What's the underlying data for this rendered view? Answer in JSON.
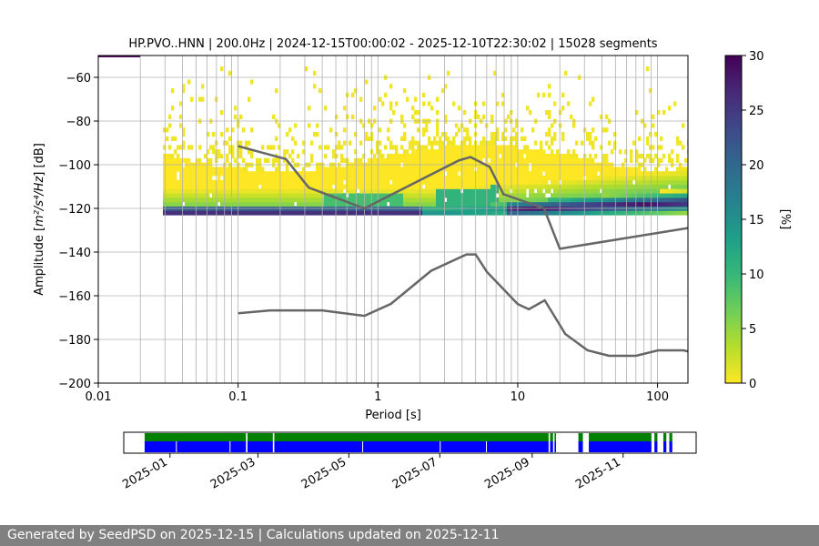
{
  "chart_data": [
    {
      "type": "heatmap",
      "title": "HP.PVO..HNN | 200.0Hz | 2024-12-15T00:00:02 - 2025-12-10T22:30:02 | 15028 segments",
      "xlabel": "Period [s]",
      "ylabel_main": "Amplitude [",
      "ylabel_units": "m²/s⁴/Hz",
      "ylabel_tail": "] [dB]",
      "x_scale": "log",
      "xlim": [
        0.01,
        165
      ],
      "ylim": [
        -200,
        -50
      ],
      "x_ticks": [
        {
          "v": 0.01,
          "label": "0.01"
        },
        {
          "v": 0.1,
          "label": "0.1"
        },
        {
          "v": 1,
          "label": "1"
        },
        {
          "v": 10,
          "label": "10"
        },
        {
          "v": 100,
          "label": "100"
        }
      ],
      "y_ticks": [
        -60,
        -80,
        -100,
        -120,
        -140,
        -160,
        -180,
        -200
      ],
      "grid": true,
      "colorbar": {
        "label": "[%]",
        "min": 0,
        "max": 30,
        "ticks": [
          0,
          5,
          10,
          15,
          20,
          25,
          30
        ],
        "colormap": "viridis_r",
        "stops": [
          "#fde725",
          "#b5de2b",
          "#6ece58",
          "#35b779",
          "#1f9e89",
          "#26828e",
          "#31688e",
          "#3e4989",
          "#482878",
          "#440154"
        ]
      },
      "nlnm_model": {
        "period": [
          0.1,
          0.17,
          0.4,
          0.8,
          1.24,
          2.4,
          4.3,
          5.0,
          6.0,
          10.0,
          12.0,
          15.6,
          21.9,
          31.6,
          45.0,
          70.0,
          101.0,
          154.0,
          165.0
        ],
        "db": [
          -168,
          -166.7,
          -166.7,
          -169.2,
          -163.7,
          -148.6,
          -141.1,
          -141.1,
          -149.0,
          -163.8,
          -166.2,
          -162.1,
          -177.5,
          -185.0,
          -187.5,
          -187.5,
          -185.0,
          -185.0,
          -185.5
        ]
      },
      "nhnm_model": {
        "period": [
          0.1,
          0.22,
          0.32,
          0.8,
          3.8,
          4.6,
          6.3,
          7.9,
          15.4,
          20.0,
          165.0
        ],
        "db": [
          -91.5,
          -97.4,
          -110.5,
          -120.0,
          -98.0,
          -96.5,
          -101.0,
          -113.5,
          -120.0,
          -138.5,
          -129.0
        ]
      },
      "heatmap_bands": {
        "floor_period_start": 0.029,
        "floor_db": [
          -120.5,
          -124.5
        ],
        "dark_band_db": [
          -121,
          -124
        ],
        "main_spread_db": [
          -125,
          -92
        ],
        "sparse_upper_db": [
          -96,
          -56
        ]
      }
    },
    {
      "type": "timeline",
      "date_ticks": [
        "2025-01",
        "2025-03",
        "2025-05",
        "2025-07",
        "2025-09",
        "2025-11"
      ],
      "range": [
        "2024-12-01",
        "2025-12-20"
      ],
      "segments": [
        [
          "2024-12-15",
          "2025-02-21"
        ],
        [
          "2025-02-22",
          "2025-03-11"
        ],
        [
          "2025-03-12",
          "2025-09-12"
        ],
        [
          "2025-09-13",
          "2025-09-15"
        ],
        [
          "2025-09-16",
          "2025-09-17"
        ],
        [
          "2025-10-02",
          "2025-10-05"
        ],
        [
          "2025-10-09",
          "2025-11-20"
        ],
        [
          "2025-11-22",
          "2025-11-24"
        ],
        [
          "2025-11-28",
          "2025-11-30"
        ],
        [
          "2025-12-02",
          "2025-12-04"
        ]
      ],
      "gaps_in_blue": [
        "2025-01-05",
        "2025-02-10",
        "2025-05-10",
        "2025-07-01",
        "2025-08-01"
      ],
      "colors": {
        "top": "#008000",
        "bottom": "#0000ff"
      }
    }
  ],
  "footer": {
    "text": "Generated by SeedPSD on 2025-12-15 | Calculations updated on 2025-12-11"
  }
}
